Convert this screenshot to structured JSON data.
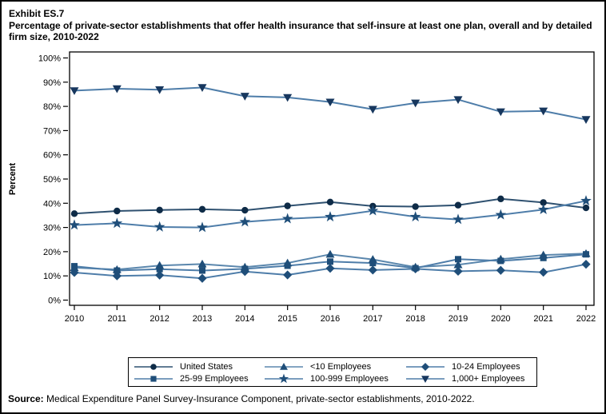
{
  "header": {
    "exhibit": "Exhibit ES.7",
    "title": "Percentage of private-sector establishments that offer health insurance that self-insure at least one plan, overall and by detailed firm size, 2010-2022"
  },
  "source": {
    "label": "Source:",
    "text": " Medical Expenditure Panel Survey-Insurance Component, private-sector establishments, 2010-2022."
  },
  "colors": {
    "axis": "#000000",
    "background": "#FFFFFF",
    "us_line": "#2F5170",
    "us_marker": "#0E2B47",
    "group_line": "#4E7DA9",
    "group_marker": "#1F4E79"
  },
  "chart_data": {
    "type": "line",
    "title": "Percentage of private-sector establishments that offer health insurance that self-insure at least one plan, overall and by detailed firm size, 2010-2022",
    "xlabel": "",
    "ylabel": "Percent",
    "ylim": [
      0,
      100
    ],
    "y_tick_labels": [
      "0%",
      "10%",
      "20%",
      "30%",
      "40%",
      "50%",
      "60%",
      "70%",
      "80%",
      "90%",
      "100%"
    ],
    "grid": false,
    "legend_position": "bottom",
    "x": [
      2010,
      2011,
      2012,
      2013,
      2014,
      2015,
      2016,
      2017,
      2018,
      2019,
      2020,
      2021,
      2022
    ],
    "series": [
      {
        "name": "United States",
        "marker": "circle",
        "line_color": "#2F5170",
        "marker_color": "#0E2B47",
        "values": [
          35.7,
          36.8,
          37.2,
          37.5,
          37.1,
          38.9,
          40.5,
          38.8,
          38.6,
          39.2,
          41.8,
          40.3,
          38.1
        ]
      },
      {
        "name": "<10 Employees",
        "marker": "triangle-up",
        "line_color": "#5B87AD",
        "marker_color": "#1F4E79",
        "values": [
          13.4,
          12.6,
          14.3,
          14.9,
          13.6,
          15.3,
          18.9,
          16.8,
          13.6,
          14.6,
          16.9,
          18.6,
          19.2
        ]
      },
      {
        "name": "10-24 Employees",
        "marker": "diamond",
        "line_color": "#4E7DA9",
        "marker_color": "#1F4E79",
        "values": [
          11.4,
          10.0,
          10.3,
          9.0,
          11.8,
          10.4,
          13.1,
          12.4,
          12.9,
          11.9,
          12.3,
          11.5,
          14.8
        ]
      },
      {
        "name": "25-99 Employees",
        "marker": "square",
        "line_color": "#4E7DA9",
        "marker_color": "#1F4E79",
        "values": [
          14.0,
          12.2,
          12.8,
          12.2,
          12.9,
          14.2,
          15.9,
          15.3,
          13.2,
          16.9,
          16.2,
          17.4,
          18.9
        ]
      },
      {
        "name": "100-999 Employees",
        "marker": "star",
        "line_color": "#4E7DA9",
        "marker_color": "#1F4E79",
        "values": [
          31.0,
          31.7,
          30.2,
          30.0,
          32.3,
          33.6,
          34.4,
          36.9,
          34.4,
          33.3,
          35.2,
          37.4,
          41.0
        ]
      },
      {
        "name": "1,000+ Employees",
        "marker": "triangle-down",
        "line_color": "#4E7DA9",
        "marker_color": "#17375E",
        "values": [
          86.5,
          87.3,
          86.9,
          87.8,
          84.2,
          83.7,
          81.8,
          78.8,
          81.4,
          82.8,
          77.8,
          78.1,
          74.6
        ]
      }
    ],
    "legend_order": [
      "United States",
      "<10 Employees",
      "10-24 Employees",
      "25-99 Employees",
      "100-999 Employees",
      "1,000+ Employees"
    ]
  }
}
